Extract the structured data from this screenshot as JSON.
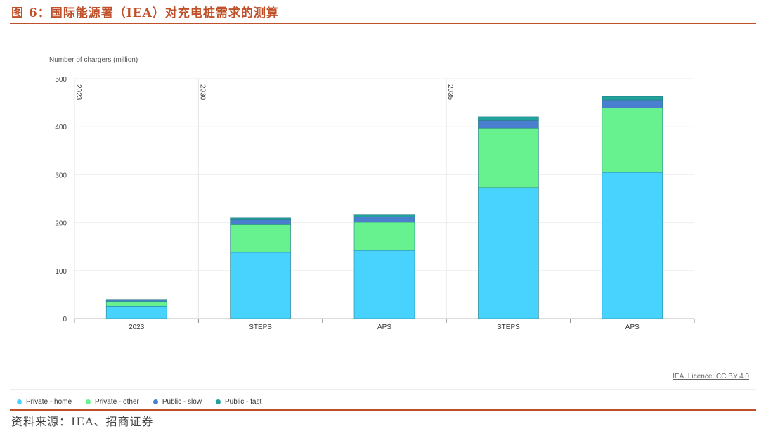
{
  "figure": {
    "title": "图 6：国际能源署（IEA）对充电桩需求的测算",
    "source": "资料来源：IEA、招商证券",
    "credit": "IEA. Licence: CC BY 4.0"
  },
  "colors": {
    "accent": "#c0502a",
    "private_home": "#47d3fd",
    "private_other": "#67f28f",
    "public_slow": "#4a7fcf",
    "public_fast": "#1fa39a"
  },
  "legend": [
    {
      "label": "Private - home",
      "color": "#47d3fd"
    },
    {
      "label": "Private - other",
      "color": "#67f28f"
    },
    {
      "label": "Public - slow",
      "color": "#4a7fcf"
    },
    {
      "label": "Public - fast",
      "color": "#1fa39a"
    }
  ],
  "chart_data": {
    "type": "bar",
    "stacked": true,
    "ylabel": "Number of chargers (million)",
    "ylim": [
      0,
      500
    ],
    "yticks": [
      0,
      100,
      200,
      300,
      400,
      500
    ],
    "grid": true,
    "legend_position": "bottom",
    "groups": [
      {
        "label": "2023",
        "categories": [
          "2023"
        ]
      },
      {
        "label": "2030",
        "categories": [
          "STEPS",
          "APS"
        ]
      },
      {
        "label": "2035",
        "categories": [
          "STEPS",
          "APS"
        ]
      }
    ],
    "categories": [
      "2023",
      "STEPS",
      "APS",
      "STEPS",
      "APS"
    ],
    "series": [
      {
        "name": "Private - home",
        "values": [
          26,
          138,
          142,
          273,
          305
        ]
      },
      {
        "name": "Private - other",
        "values": [
          10,
          58,
          59,
          124,
          134
        ]
      },
      {
        "name": "Public - slow",
        "values": [
          3,
          10,
          11,
          16,
          17
        ]
      },
      {
        "name": "Public - fast",
        "values": [
          1,
          4,
          4,
          8,
          7
        ]
      }
    ]
  }
}
